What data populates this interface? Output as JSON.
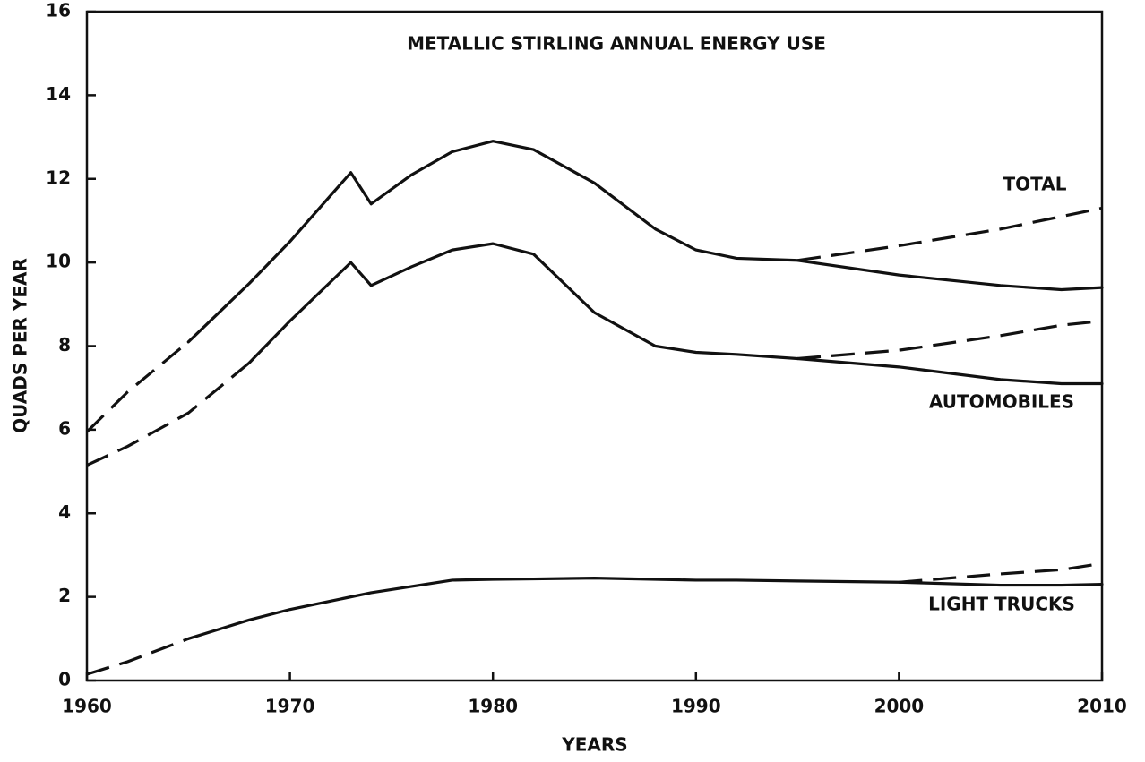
{
  "chart_data": {
    "type": "line",
    "title": "METALLIC STIRLING ANNUAL ENERGY USE",
    "x_label": "YEARS",
    "y_label": "QUADS PER YEAR",
    "x": [
      1960,
      1962,
      1965,
      1968,
      1970,
      1973,
      1974,
      1976,
      1978,
      1980,
      1982,
      1985,
      1988,
      1990,
      1992,
      1995,
      2000,
      2005,
      2008,
      2010
    ],
    "series": [
      {
        "name": "TOTAL",
        "color": "#111111",
        "values": [
          null,
          null,
          8.1,
          9.5,
          10.5,
          12.15,
          11.4,
          12.1,
          12.65,
          12.9,
          12.7,
          11.9,
          10.8,
          10.3,
          10.1,
          10.05,
          9.7,
          9.45,
          9.35,
          9.4
        ],
        "dashed_values": [
          5.95,
          6.9,
          8.1,
          null,
          null,
          null,
          null,
          null,
          null,
          null,
          null,
          null,
          null,
          null,
          null,
          10.05,
          10.4,
          10.8,
          11.1,
          11.3
        ]
      },
      {
        "name": "AUTOMOBILES",
        "color": "#111111",
        "values": [
          null,
          null,
          null,
          7.6,
          8.6,
          10.0,
          9.45,
          9.9,
          10.3,
          10.45,
          10.2,
          8.8,
          8.0,
          7.85,
          7.8,
          7.7,
          7.5,
          7.2,
          7.1,
          7.1
        ],
        "dashed_values": [
          5.15,
          5.6,
          6.4,
          7.6,
          null,
          null,
          null,
          null,
          null,
          null,
          null,
          null,
          null,
          null,
          null,
          7.7,
          7.9,
          8.25,
          8.5,
          8.6
        ]
      },
      {
        "name": "LIGHT TRUCKS",
        "color": "#111111",
        "values": [
          null,
          null,
          1.0,
          1.45,
          1.7,
          2.0,
          2.1,
          2.25,
          2.4,
          2.42,
          2.43,
          2.45,
          2.42,
          2.4,
          2.4,
          2.38,
          2.35,
          2.28,
          2.28,
          2.3
        ],
        "dashed_values": [
          0.15,
          0.45,
          1.0,
          null,
          null,
          null,
          null,
          null,
          null,
          null,
          null,
          null,
          null,
          null,
          null,
          null,
          2.35,
          2.55,
          2.65,
          2.8
        ]
      }
    ],
    "xlim": [
      1960,
      2010
    ],
    "xticks": [
      1960,
      1970,
      1980,
      1990,
      2000,
      2010
    ],
    "ylim": [
      0,
      16
    ],
    "yticks": [
      0,
      2,
      4,
      6,
      8,
      10,
      12,
      14,
      16
    ]
  }
}
